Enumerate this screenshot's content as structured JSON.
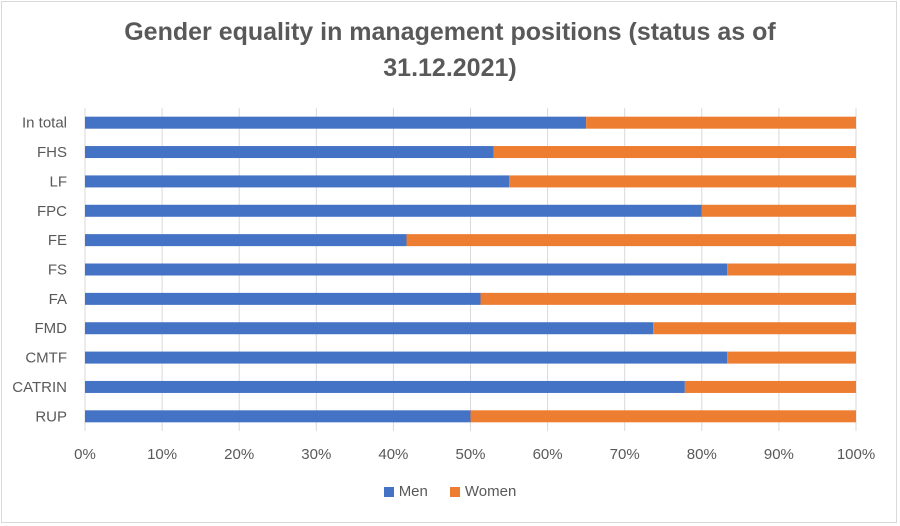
{
  "chart_data": {
    "type": "bar",
    "orientation": "horizontal",
    "stacking": "percent",
    "title": "Gender equality in management positions (status as of 31.12.2021)",
    "title_lines": [
      "Gender equality in management positions (status as of",
      "31.12.2021)"
    ],
    "categories": [
      "In total",
      "FHS",
      "LF",
      "FPC",
      "FE",
      "FS",
      "FA",
      "FMD",
      "CMTF",
      "CATRIN",
      "RUP"
    ],
    "series": [
      {
        "name": "Men",
        "color": "#4472c4",
        "values": [
          65,
          53,
          55,
          80,
          41.7,
          83.3,
          51.3,
          73.7,
          83.3,
          77.8,
          50
        ]
      },
      {
        "name": "Women",
        "color": "#ed7d31",
        "values": [
          35,
          47,
          45,
          20,
          58.3,
          16.7,
          48.7,
          26.3,
          16.7,
          22.2,
          50
        ]
      }
    ],
    "xlim": [
      0,
      100
    ],
    "x_ticks": [
      "0%",
      "10%",
      "20%",
      "30%",
      "40%",
      "50%",
      "60%",
      "70%",
      "80%",
      "90%",
      "100%"
    ],
    "grid": true,
    "legend_position": "bottom"
  }
}
